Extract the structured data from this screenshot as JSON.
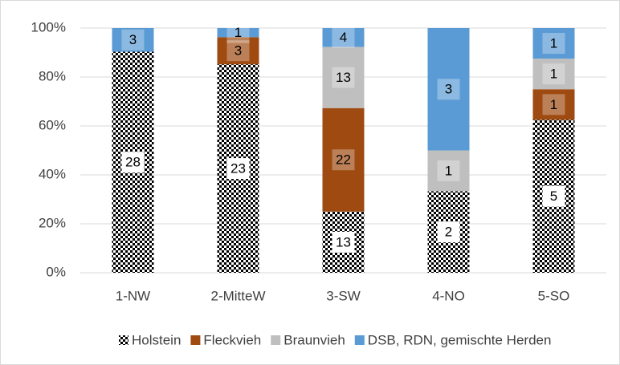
{
  "chart_data": {
    "type": "bar",
    "stacking": "percent",
    "categories": [
      "1-NW",
      "2-MitteW",
      "3-SW",
      "4-NO",
      "5-SO"
    ],
    "series": [
      {
        "name": "Holstein",
        "color": "#000000",
        "pattern": "dots",
        "values": [
          28,
          23,
          13,
          2,
          5
        ]
      },
      {
        "name": "Fleckvieh",
        "color": "#9e4a10",
        "values": [
          null,
          3,
          22,
          null,
          1
        ]
      },
      {
        "name": "Braunvieh",
        "color": "#bfbfbf",
        "values": [
          null,
          null,
          13,
          1,
          1
        ]
      },
      {
        "name": "DSB, RDN, gemischte Herden",
        "color": "#5b9bd5",
        "values": [
          3,
          1,
          4,
          3,
          1
        ]
      }
    ],
    "ylim": [
      0,
      100
    ],
    "yticks": [
      {
        "value": 0,
        "label": "0%"
      },
      {
        "value": 20,
        "label": "20%"
      },
      {
        "value": 40,
        "label": "40%"
      },
      {
        "value": 60,
        "label": "60%"
      },
      {
        "value": 80,
        "label": "80%"
      },
      {
        "value": 100,
        "label": "100%"
      }
    ],
    "grid": true,
    "legend": "bottom"
  }
}
